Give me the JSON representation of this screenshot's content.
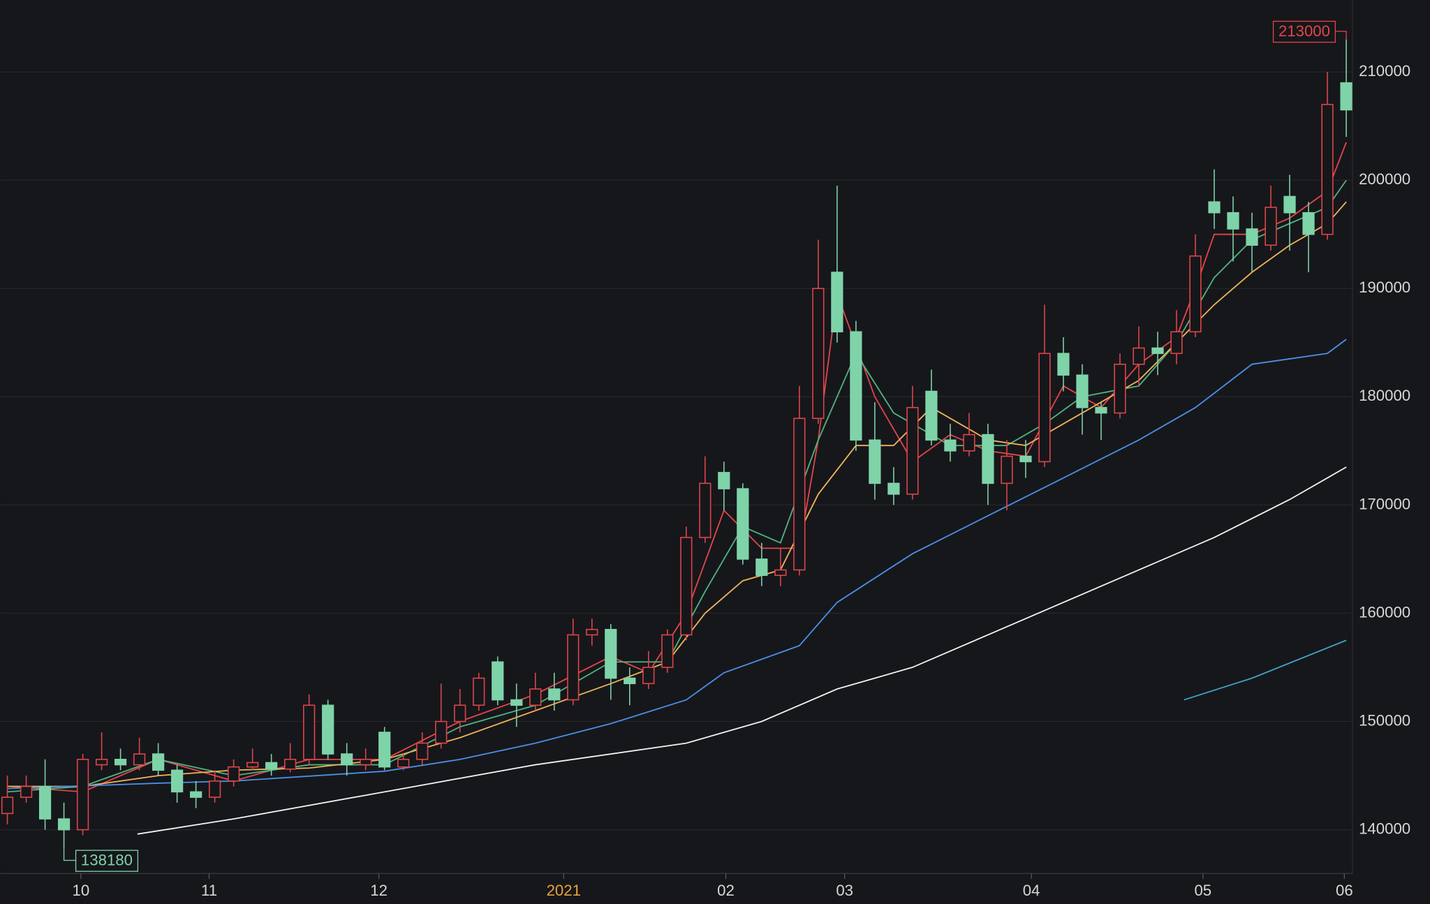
{
  "chart_data": {
    "type": "candlestick",
    "up_color": "#e0464a",
    "down_color": "#7fd3a9",
    "background": "#16171b",
    "grid": true,
    "ylim": [
      135960,
      216650
    ],
    "yticks": [
      140000,
      150000,
      160000,
      170000,
      180000,
      190000,
      200000,
      210000
    ],
    "xlim": [
      -0.39,
      71.33
    ],
    "xticks": [
      {
        "value": 3.9,
        "label": "10"
      },
      {
        "value": 10.7,
        "label": "11"
      },
      {
        "value": 19.7,
        "label": "12"
      },
      {
        "value": 29.5,
        "label": "2021",
        "color": "#e8a23a"
      },
      {
        "value": 38.1,
        "label": "02"
      },
      {
        "value": 44.4,
        "label": "03"
      },
      {
        "value": 54.3,
        "label": "04"
      },
      {
        "value": 63.4,
        "label": "05"
      },
      {
        "value": 70.9,
        "label": "06"
      }
    ],
    "candles": {
      "open": [
        141500,
        143000,
        144000,
        141000,
        140000,
        146000,
        146500,
        146000,
        147000,
        145500,
        143500,
        143000,
        144500,
        145800,
        146200,
        145600,
        146500,
        151500,
        147000,
        146000,
        149000,
        145800,
        146500,
        148000,
        150000,
        151500,
        155500,
        152000,
        151500,
        153000,
        152000,
        158000,
        158500,
        154000,
        153500,
        155000,
        158000,
        167000,
        173000,
        171500,
        165000,
        163500,
        164000,
        178000,
        191500,
        186000,
        176000,
        172000,
        171000,
        180500,
        176000,
        175000,
        176500,
        172000,
        174500,
        174000,
        184000,
        182000,
        179000,
        178500,
        183000,
        184500,
        184000,
        186000,
        198000,
        197000,
        195500,
        194000,
        198500,
        197000,
        195000,
        209000
      ],
      "high": [
        145000,
        145000,
        146500,
        142500,
        147000,
        149000,
        147500,
        148500,
        148000,
        146000,
        144500,
        145500,
        146500,
        147500,
        147000,
        148000,
        152500,
        152000,
        148000,
        147500,
        149500,
        147000,
        149000,
        153500,
        153000,
        154500,
        156000,
        153500,
        154500,
        154500,
        159500,
        159500,
        159000,
        155000,
        156500,
        158500,
        168000,
        174500,
        174000,
        172000,
        166500,
        166000,
        181000,
        194500,
        199500,
        187000,
        179500,
        173500,
        181000,
        182500,
        177500,
        178500,
        177500,
        176000,
        176000,
        188500,
        185500,
        183000,
        179500,
        184000,
        186500,
        186000,
        188000,
        195000,
        201000,
        198500,
        197000,
        199500,
        200500,
        198000,
        210000,
        213000
      ],
      "low": [
        140500,
        142500,
        140000,
        138180,
        139500,
        145500,
        145500,
        145500,
        145000,
        142500,
        142000,
        142500,
        144000,
        145500,
        145000,
        145300,
        146000,
        146500,
        145000,
        145500,
        145500,
        145500,
        146000,
        147500,
        149000,
        151000,
        151500,
        149500,
        151000,
        151000,
        151500,
        157000,
        152000,
        151500,
        153000,
        154500,
        157500,
        166500,
        169500,
        164500,
        162500,
        162500,
        163500,
        177500,
        185000,
        175000,
        170500,
        170000,
        170500,
        175500,
        174000,
        174500,
        170000,
        169500,
        172500,
        173500,
        180500,
        176500,
        176000,
        178000,
        181000,
        182000,
        183000,
        185500,
        195500,
        192500,
        191500,
        193500,
        193500,
        191500,
        194500,
        204000
      ],
      "close": [
        143000,
        144000,
        141000,
        140000,
        146500,
        146500,
        146000,
        147000,
        145500,
        143500,
        143000,
        144500,
        145800,
        146200,
        145600,
        146500,
        151500,
        147000,
        146000,
        146500,
        145800,
        146500,
        148000,
        150000,
        151500,
        154000,
        152000,
        151500,
        153000,
        152000,
        158000,
        158500,
        154000,
        153500,
        155000,
        158000,
        167000,
        172000,
        171500,
        165000,
        163500,
        164000,
        178000,
        190000,
        186000,
        176000,
        172000,
        171000,
        179000,
        176000,
        175000,
        176500,
        172000,
        174500,
        174000,
        184000,
        182000,
        179000,
        178500,
        183000,
        184500,
        184000,
        186000,
        193000,
        197000,
        195500,
        194000,
        197500,
        197000,
        195000,
        207000,
        206500
      ]
    },
    "series": [
      {
        "color": "#e0464a",
        "x": [
          0,
          4,
          8,
          12,
          16,
          20,
          24,
          28,
          32,
          34,
          36,
          38,
          40,
          42,
          43,
          44,
          46,
          48,
          50,
          52,
          54,
          56,
          58,
          60,
          62,
          63,
          64,
          66,
          68,
          70,
          71
        ],
        "values": [
          144000,
          143500,
          146500,
          144500,
          146500,
          146500,
          150000,
          152500,
          156000,
          154500,
          160000,
          169500,
          166000,
          166000,
          176000,
          189500,
          180000,
          174000,
          176500,
          175000,
          174500,
          181000,
          179000,
          183000,
          185500,
          190000,
          195000,
          195000,
          196500,
          199000,
          203500
        ]
      },
      {
        "color": "#4fb37f",
        "x": [
          0,
          4,
          8,
          12,
          16,
          20,
          24,
          28,
          32,
          35,
          37,
          39,
          41,
          43,
          45,
          47,
          50,
          53,
          55,
          57,
          60,
          62,
          64,
          66,
          68,
          70,
          71
        ],
        "values": [
          143500,
          144000,
          146500,
          145000,
          146000,
          146000,
          149500,
          151500,
          155500,
          155500,
          162000,
          168000,
          166500,
          176000,
          184000,
          178500,
          175500,
          175500,
          177500,
          180000,
          181000,
          185000,
          191000,
          194500,
          196000,
          197500,
          200000
        ]
      },
      {
        "color": "#f0b35a",
        "x": [
          0,
          4,
          8,
          12,
          16,
          20,
          24,
          28,
          32,
          35,
          37,
          39,
          41,
          43,
          45,
          47,
          49,
          52,
          54,
          57,
          60,
          62,
          64,
          66,
          68,
          70,
          71
        ],
        "values": [
          144000,
          144000,
          145000,
          145500,
          145700,
          146500,
          148500,
          151000,
          153500,
          155500,
          160000,
          163000,
          164000,
          171000,
          175500,
          175500,
          179000,
          176000,
          175500,
          178500,
          181500,
          185000,
          188500,
          191500,
          194000,
          196000,
          198000
        ]
      },
      {
        "color": "#4a8fe6",
        "x": [
          0,
          8,
          12,
          20,
          24,
          28,
          32,
          36,
          38,
          42,
          44,
          48,
          52,
          56,
          60,
          63,
          66,
          68,
          70,
          71
        ],
        "values": [
          143800,
          144300,
          144500,
          145400,
          146500,
          148000,
          149800,
          152000,
          154500,
          157000,
          161000,
          165500,
          169000,
          172500,
          176000,
          179000,
          183000,
          183500,
          184000,
          185300
        ]
      },
      {
        "color": "#f2f2f2",
        "x": [
          6.9,
          12,
          20,
          28,
          36,
          40,
          44,
          48,
          52,
          56,
          60,
          64,
          68,
          71
        ],
        "values": [
          139600,
          141000,
          143500,
          146000,
          148000,
          150000,
          153000,
          155000,
          158000,
          161000,
          164000,
          167000,
          170500,
          173500
        ]
      },
      {
        "color": "#3ea5c2",
        "x": [
          62.4,
          66,
          71
        ],
        "values": [
          152000,
          154000,
          157500
        ]
      }
    ]
  }
}
